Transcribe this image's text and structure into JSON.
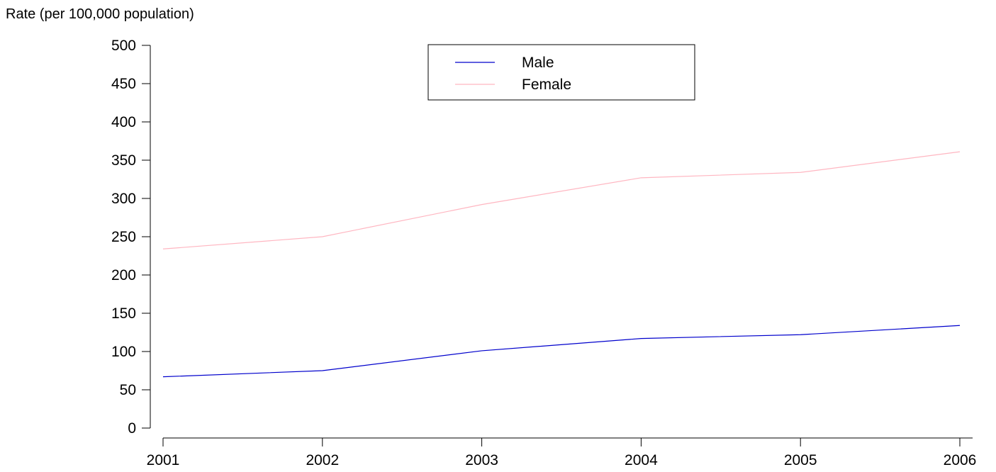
{
  "chart_data": {
    "type": "line",
    "title": "",
    "xlabel": "",
    "ylabel": "Rate (per 100,000 population)",
    "x": [
      2001,
      2002,
      2003,
      2004,
      2005,
      2006
    ],
    "x_tick_labels": [
      "2001",
      "2002",
      "2003",
      "2004",
      "2005",
      "2006"
    ],
    "y_ticks": [
      0,
      50,
      100,
      150,
      200,
      250,
      300,
      350,
      400,
      450,
      500
    ],
    "y_tick_labels": [
      "0",
      "50",
      "100",
      "150",
      "200",
      "250",
      "300",
      "350",
      "400",
      "450",
      "500"
    ],
    "ylim": [
      0,
      500
    ],
    "xlim": [
      2001,
      2006
    ],
    "grid": false,
    "legend_position": "top-center",
    "series": [
      {
        "name": "Male",
        "color": "#0000cc",
        "values": [
          67,
          75,
          101,
          117,
          122,
          134
        ]
      },
      {
        "name": "Female",
        "color": "#ffb6c1",
        "values": [
          234,
          250,
          292,
          327,
          334,
          361
        ]
      }
    ]
  }
}
